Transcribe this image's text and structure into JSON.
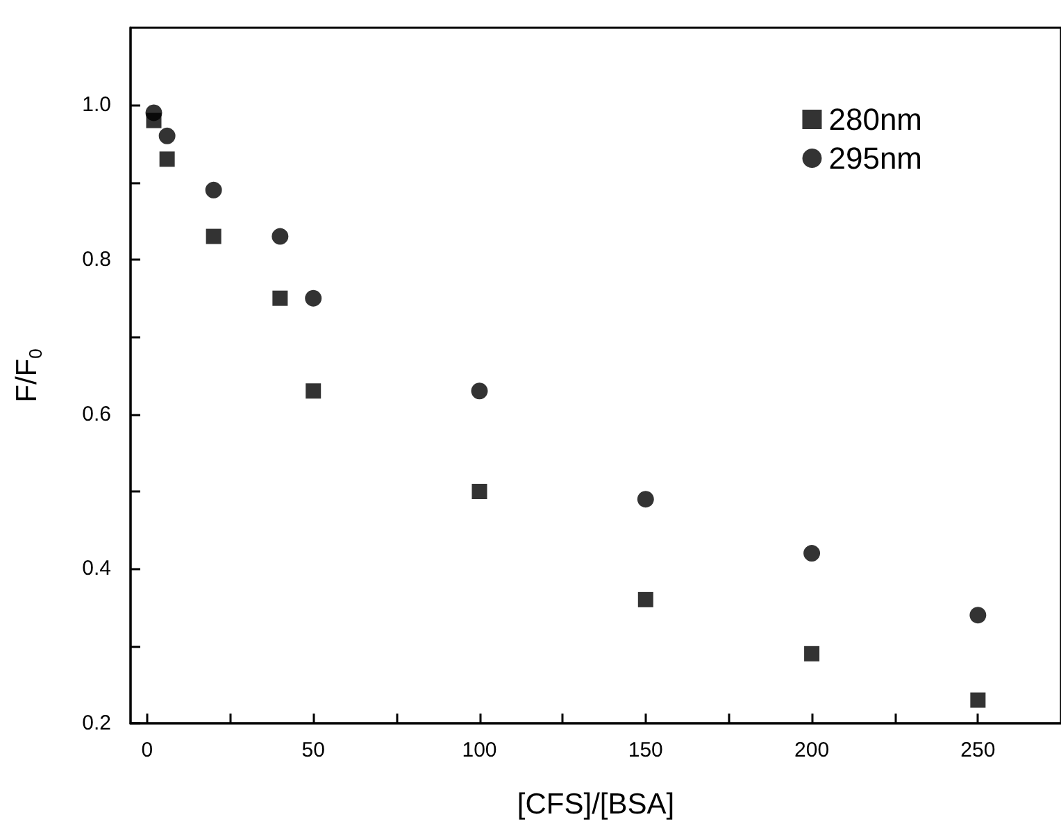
{
  "chart_data": {
    "type": "scatter",
    "xlabel": "[CFS]/[BSA]",
    "ylabel": "F/F$_{0}$",
    "x": [
      2,
      6,
      20,
      40,
      50,
      100,
      150,
      200,
      250
    ],
    "series": [
      {
        "name": "280nm",
        "color": "#000000",
        "marker": "square",
        "values": [
          0.98,
          0.93,
          0.83,
          0.75,
          0.63,
          0.5,
          0.36,
          0.29,
          0.23
        ]
      },
      {
        "name": "295nm",
        "color": "#000000",
        "marker": "circle",
        "values": [
          0.99,
          0.96,
          0.89,
          0.83,
          0.75,
          0.63,
          0.49,
          0.42,
          0.34
        ]
      }
    ],
    "xlim": [
      -5,
      275
    ],
    "xticks": [
      0,
      {
        "value": 25,
        "label": null
      },
      50,
      {
        "value": 75,
        "label": null
      },
      100,
      {
        "value": 125,
        "label": null
      },
      150,
      {
        "value": 175,
        "label": null
      },
      200,
      {
        "value": 225,
        "label": null
      },
      250
    ],
    "ylim": [
      0.2,
      1.1
    ],
    "yticks": [
      {
        "value": 0.2,
        "label": "0.2"
      },
      {
        "value": 0.3,
        "label": null
      },
      {
        "value": 0.4,
        "label": "0.4"
      },
      {
        "value": 0.5,
        "label": null
      },
      {
        "value": 0.6,
        "label": "0.6"
      },
      {
        "value": 0.7,
        "label": null
      },
      {
        "value": 0.8,
        "label": "0.8"
      },
      {
        "value": 0.9,
        "label": null
      },
      {
        "value": 1.0,
        "label": "1.0"
      }
    ],
    "grid": false,
    "legend": "top right"
  }
}
